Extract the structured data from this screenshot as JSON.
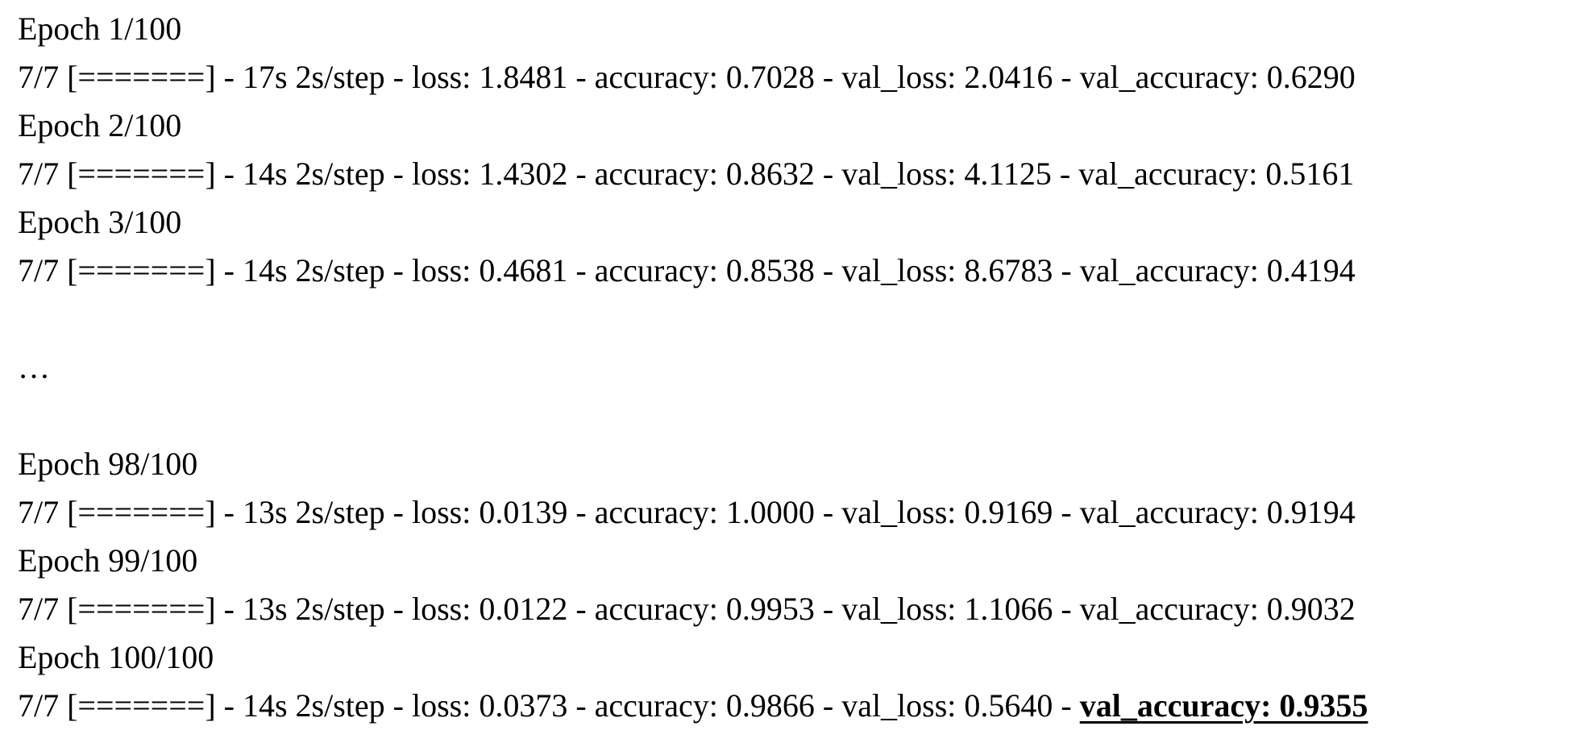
{
  "page": {
    "background_color": "#ffffff",
    "text_color": "#000000"
  },
  "log": {
    "epochs_first": [
      {
        "header": "Epoch 1/100",
        "metrics": "7/7 [=======] - 17s 2s/step - loss: 1.8481 - accuracy: 0.7028 - val_loss: 2.0416 - val_accuracy: 0.6290"
      },
      {
        "header": "Epoch 2/100",
        "metrics": "7/7 [=======] - 14s 2s/step - loss: 1.4302 - accuracy: 0.8632 - val_loss: 4.1125 - val_accuracy: 0.5161"
      },
      {
        "header": "Epoch 3/100",
        "metrics": "7/7 [=======] - 14s 2s/step - loss: 0.4681 - accuracy: 0.8538 - val_loss: 8.6783 - val_accuracy: 0.4194"
      }
    ],
    "ellipsis": "…",
    "epochs_last": [
      {
        "header": "Epoch 98/100",
        "metrics": "7/7 [=======] - 13s 2s/step - loss: 0.0139 - accuracy: 1.0000 - val_loss: 0.9169 - val_accuracy: 0.9194"
      },
      {
        "header": "Epoch 99/100",
        "metrics": "7/7 [=======] - 13s 2s/step - loss: 0.0122 - accuracy: 0.9953 - val_loss: 1.1066 - val_accuracy: 0.9032"
      }
    ],
    "final_epoch": {
      "header": "Epoch 100/100",
      "metrics_prefix": "7/7 [=======] - 14s 2s/step - loss: 0.0373 - accuracy: 0.9866 - val_loss: 0.5640 - ",
      "metrics_highlight": "val_accuracy: 0.9355"
    }
  }
}
